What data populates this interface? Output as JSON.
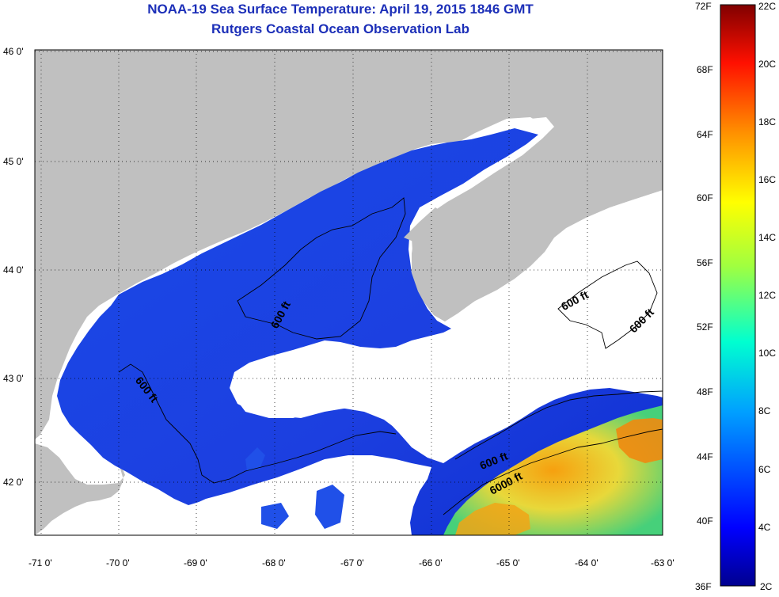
{
  "title": "NOAA-19 Sea Surface Temperature:  April 19, 2015 1846 GMT",
  "subtitle": "Rutgers Coastal Ocean Observation Lab",
  "lat_labels": [
    "46 0'",
    "45 0'",
    "44 0'",
    "43 0'",
    "42 0'"
  ],
  "lon_labels": [
    "-71 0'",
    "-70 0'",
    "-69 0'",
    "-68 0'",
    "-67 0'",
    "-66 0'",
    "-65 0'",
    "-64 0'",
    "-63 0'"
  ],
  "contour_labels": [
    "600 ft",
    "600 ft",
    "600 ft",
    "600 ft",
    "600 ft",
    "6000 ft"
  ],
  "colorbar": {
    "fahrenheit": [
      "72F",
      "68F",
      "64F",
      "60F",
      "56F",
      "52F",
      "48F",
      "44F",
      "40F",
      "36F"
    ],
    "celsius": [
      "22C",
      "20C",
      "18C",
      "16C",
      "14C",
      "12C",
      "10C",
      "8C",
      "6C",
      "4C",
      "2C"
    ]
  },
  "colors": {
    "land": "#c0c0c0",
    "cloud": "#ffffff",
    "water_cold": "#1a3fe6",
    "water_warm": "#f6a00f"
  }
}
